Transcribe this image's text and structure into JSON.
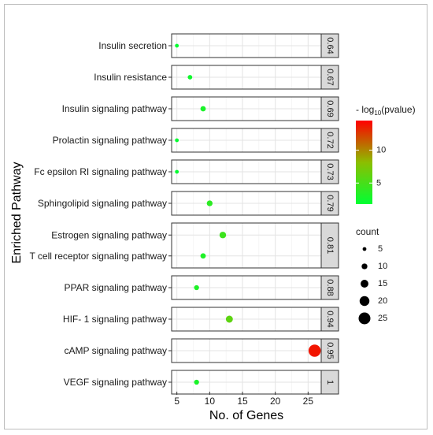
{
  "chart_data": {
    "type": "scatter",
    "xlabel": "No. of Genes",
    "ylabel": "Enriched Pathway",
    "xlim": [
      4.2,
      27.0
    ],
    "xticks": [
      5,
      10,
      15,
      20,
      25
    ],
    "grid": true,
    "facet_strips": [
      {
        "label": "0.64",
        "pathways": [
          "Insulin secretion"
        ]
      },
      {
        "label": "0.67",
        "pathways": [
          "Insulin resistance"
        ]
      },
      {
        "label": "0.69",
        "pathways": [
          "Insulin signaling pathway"
        ]
      },
      {
        "label": "0.72",
        "pathways": [
          "Prolactin signaling pathway"
        ]
      },
      {
        "label": "0.73",
        "pathways": [
          "Fc epsilon RI signaling pathway"
        ]
      },
      {
        "label": "0.79",
        "pathways": [
          "Sphingolipid signaling pathway"
        ]
      },
      {
        "label": "0.81",
        "pathways": [
          "Estrogen signaling pathway",
          "T cell receptor signaling pathway"
        ]
      },
      {
        "label": "0.88",
        "pathways": [
          "PPAR signaling pathway"
        ]
      },
      {
        "label": "0.94",
        "pathways": [
          "HIF- 1 signaling pathway"
        ]
      },
      {
        "label": "0.95",
        "pathways": [
          "cAMP signaling pathway"
        ]
      },
      {
        "label": "1",
        "pathways": [
          "VEGF signaling pathway"
        ]
      }
    ],
    "points": [
      {
        "pathway": "Insulin secretion",
        "genes": 5,
        "count": 5,
        "neg_log10_p": 2.0
      },
      {
        "pathway": "Insulin resistance",
        "genes": 7,
        "count": 7,
        "neg_log10_p": 2.5
      },
      {
        "pathway": "Insulin signaling pathway",
        "genes": 9,
        "count": 9,
        "neg_log10_p": 3.0
      },
      {
        "pathway": "Prolactin signaling pathway",
        "genes": 5,
        "count": 5,
        "neg_log10_p": 2.0
      },
      {
        "pathway": "Fc epsilon RI signaling pathway",
        "genes": 5,
        "count": 5,
        "neg_log10_p": 2.0
      },
      {
        "pathway": "Sphingolipid signaling pathway",
        "genes": 10,
        "count": 10,
        "neg_log10_p": 3.8
      },
      {
        "pathway": "Estrogen signaling pathway",
        "genes": 12,
        "count": 12,
        "neg_log10_p": 4.5
      },
      {
        "pathway": "T cell receptor signaling pathway",
        "genes": 9,
        "count": 9,
        "neg_log10_p": 3.2
      },
      {
        "pathway": "PPAR signaling pathway",
        "genes": 8,
        "count": 8,
        "neg_log10_p": 3.2
      },
      {
        "pathway": "HIF- 1 signaling pathway",
        "genes": 13,
        "count": 13,
        "neg_log10_p": 6.0
      },
      {
        "pathway": "cAMP signaling pathway",
        "genes": 26,
        "count": 26,
        "neg_log10_p": 13.8
      },
      {
        "pathway": "VEGF signaling pathway",
        "genes": 8,
        "count": 8,
        "neg_log10_p": 3.0
      }
    ],
    "color_legend": {
      "title_prefix": "- log",
      "title_sub": "10",
      "title_suffix": "(pvalue)",
      "ticks": [
        5,
        10
      ],
      "range": [
        1.8,
        14.5
      ],
      "low_color": "#00ff33",
      "high_color": "#ff0000"
    },
    "size_legend": {
      "title": "count",
      "values": [
        5,
        10,
        15,
        20,
        25
      ]
    }
  }
}
